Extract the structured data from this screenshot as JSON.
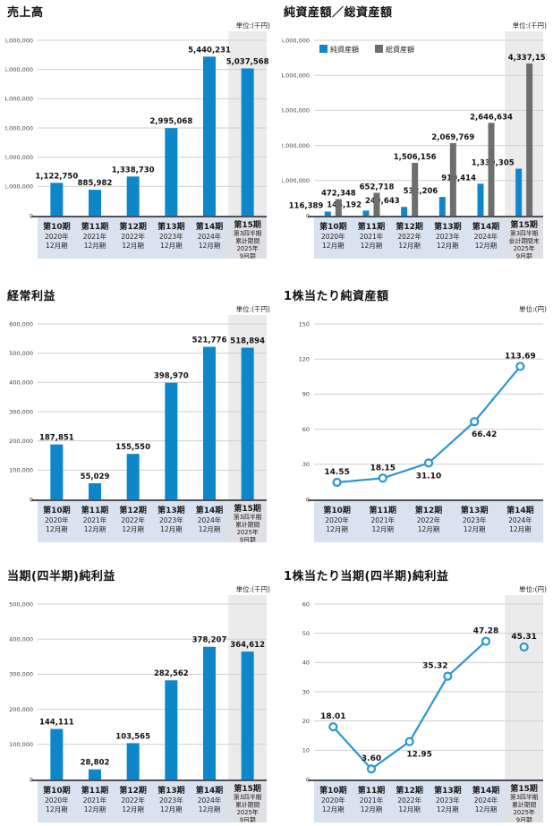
{
  "colors": {
    "bar_blue": "#0d87c9",
    "bar_gray": "#6e6e6e",
    "line_blue": "#2d95d3",
    "marker_fill": "#ffffff",
    "footer_band": "#d9e3f0",
    "footer_band_last": "#dfe0e4",
    "highlight_column": "#ebebeb",
    "gridline": "#cfcfcf",
    "axis_line": "#50505a",
    "tick_text": "#444444",
    "value_label_text": "#111111",
    "category_text": "#222222"
  },
  "chart_data": [
    {
      "type": "bar",
      "title": "売上高",
      "unit": "単位:(千円)",
      "ymax": 6000000,
      "yticks": [
        {
          "label": "6,000,000",
          "value": 6000000
        },
        {
          "label": "5,000,000",
          "value": 5000000
        },
        {
          "label": "4,000,000",
          "value": 4000000
        },
        {
          "label": "3,000,000",
          "value": 3000000
        },
        {
          "label": "2,000,000",
          "value": 2000000
        },
        {
          "label": "1,000,000",
          "value": 1000000
        },
        {
          "label": "0",
          "value": 0
        }
      ],
      "categories": [
        [
          "第10期",
          "2020年",
          "12月期"
        ],
        [
          "第11期",
          "2021年",
          "12月期"
        ],
        [
          "第12期",
          "2022年",
          "12月期"
        ],
        [
          "第13期",
          "2023年",
          "12月期"
        ],
        [
          "第14期",
          "2024年",
          "12月期"
        ],
        [
          "第15期",
          "第3四半期",
          "累計期間",
          "2025年",
          "9月期"
        ]
      ],
      "values": [
        1122750,
        885982,
        1338730,
        2995068,
        5440231,
        5037568
      ],
      "value_labels": [
        "1,122,750",
        "885,982",
        "1,338,730",
        "2,995,068",
        "5,440,231",
        "5,037,568"
      ],
      "highlight_last": true
    },
    {
      "type": "grouped_bar",
      "title": "純資産額／総資産額",
      "unit": "単位:(千円)",
      "ymax": 5000000,
      "yticks": [
        {
          "label": "5,000,000",
          "value": 5000000
        },
        {
          "label": "4,000,000",
          "value": 4000000
        },
        {
          "label": "3,000,000",
          "value": 3000000
        },
        {
          "label": "2,000,000",
          "value": 2000000
        },
        {
          "label": "1,000,000",
          "value": 1000000
        },
        {
          "label": "0",
          "value": 0
        }
      ],
      "categories": [
        [
          "第10期",
          "2020年",
          "12月期"
        ],
        [
          "第11期",
          "2021年",
          "12月期"
        ],
        [
          "第12期",
          "2022年",
          "12月期"
        ],
        [
          "第13期",
          "2023年",
          "12月期"
        ],
        [
          "第14期",
          "2024年",
          "12月期"
        ],
        [
          "第15期",
          "第3四半期",
          "会計期間末",
          "2025年",
          "9月期"
        ]
      ],
      "legend": [
        {
          "label": "純資産額",
          "color_key": "bar_blue"
        },
        {
          "label": "総資産額",
          "color_key": "bar_gray"
        }
      ],
      "series": [
        {
          "name": "純資産額",
          "color_key": "bar_blue",
          "label_style": "left",
          "values": [
            116389,
            145192,
            249643,
            532206,
            910414,
            1339305
          ],
          "value_labels": [
            "116,389",
            "145,192",
            "249,643",
            "532,206",
            "910,414",
            "1,339,305"
          ]
        },
        {
          "name": "総資産額",
          "color_key": "bar_gray",
          "label_style": "center",
          "values": [
            472348,
            652718,
            1506156,
            2069769,
            2646634,
            4337151
          ],
          "value_labels": [
            "472,348",
            "652,718",
            "1,506,156",
            "2,069,769",
            "2,646,634",
            "4,337,151"
          ]
        }
      ],
      "highlight_last": true
    },
    {
      "type": "bar",
      "title": "経常利益",
      "unit": "単位:(千円)",
      "ymax": 600000,
      "yticks": [
        {
          "label": "600,000",
          "value": 600000
        },
        {
          "label": "500,000",
          "value": 500000
        },
        {
          "label": "400,000",
          "value": 400000
        },
        {
          "label": "300,000",
          "value": 300000
        },
        {
          "label": "200,000",
          "value": 200000
        },
        {
          "label": "100,000",
          "value": 100000
        },
        {
          "label": "0",
          "value": 0
        }
      ],
      "categories": [
        [
          "第10期",
          "2020年",
          "12月期"
        ],
        [
          "第11期",
          "2021年",
          "12月期"
        ],
        [
          "第12期",
          "2022年",
          "12月期"
        ],
        [
          "第13期",
          "2023年",
          "12月期"
        ],
        [
          "第14期",
          "2024年",
          "12月期"
        ],
        [
          "第15期",
          "第3四半期",
          "累計期間",
          "2025年",
          "9月期"
        ]
      ],
      "values": [
        187851,
        55029,
        155550,
        398970,
        521776,
        518894
      ],
      "value_labels": [
        "187,851",
        "55,029",
        "155,550",
        "398,970",
        "521,776",
        "518,894"
      ],
      "highlight_last": true
    },
    {
      "type": "line",
      "title": "1株当たり純資産額",
      "unit": "単位:(円)",
      "ymax": 150,
      "yticks": [
        {
          "label": "150",
          "value": 150
        },
        {
          "label": "120",
          "value": 120
        },
        {
          "label": "90",
          "value": 90
        },
        {
          "label": "60",
          "value": 60
        },
        {
          "label": "30",
          "value": 30
        },
        {
          "label": "0",
          "value": 0
        }
      ],
      "categories": [
        [
          "第10期",
          "2020年",
          "12月期"
        ],
        [
          "第11期",
          "2021年",
          "12月期"
        ],
        [
          "第12期",
          "2022年",
          "12月期"
        ],
        [
          "第13期",
          "2023年",
          "12月期"
        ],
        [
          "第14期",
          "2024年",
          "12月期"
        ]
      ],
      "values": [
        14.55,
        18.15,
        31.1,
        66.42,
        113.69
      ],
      "value_labels": [
        "14.55",
        "18.15",
        "31.10",
        "66.42",
        "113.69"
      ],
      "label_pos": [
        "above",
        "above",
        "below",
        "below-right",
        "above"
      ],
      "connect_count": 5,
      "highlight_last": false
    },
    {
      "type": "bar",
      "title": "当期(四半期)純利益",
      "unit": "単位:(千円)",
      "ymax": 500000,
      "yticks": [
        {
          "label": "500,000",
          "value": 500000
        },
        {
          "label": "400,000",
          "value": 400000
        },
        {
          "label": "300,000",
          "value": 300000
        },
        {
          "label": "200,000",
          "value": 200000
        },
        {
          "label": "100,000",
          "value": 100000
        },
        {
          "label": "0",
          "value": 0
        }
      ],
      "categories": [
        [
          "第10期",
          "2020年",
          "12月期"
        ],
        [
          "第11期",
          "2021年",
          "12月期"
        ],
        [
          "第12期",
          "2022年",
          "12月期"
        ],
        [
          "第13期",
          "2023年",
          "12月期"
        ],
        [
          "第14期",
          "2024年",
          "12月期"
        ],
        [
          "第15期",
          "第3四半期",
          "累計期間",
          "2025年",
          "9月期"
        ]
      ],
      "values": [
        144111,
        28802,
        103565,
        282562,
        378207,
        364612
      ],
      "value_labels": [
        "144,111",
        "28,802",
        "103,565",
        "282,562",
        "378,207",
        "364,612"
      ],
      "highlight_last": true
    },
    {
      "type": "line",
      "title": "1株当たり当期(四半期)純利益",
      "unit": "単位:(円)",
      "ymax": 60,
      "yticks": [
        {
          "label": "60",
          "value": 60
        },
        {
          "label": "50",
          "value": 50
        },
        {
          "label": "40",
          "value": 40
        },
        {
          "label": "30",
          "value": 30
        },
        {
          "label": "20",
          "value": 20
        },
        {
          "label": "10",
          "value": 10
        },
        {
          "label": "0",
          "value": 0
        }
      ],
      "categories": [
        [
          "第10期",
          "2020年",
          "12月期"
        ],
        [
          "第11期",
          "2021年",
          "12月期"
        ],
        [
          "第12期",
          "2022年",
          "12月期"
        ],
        [
          "第13期",
          "2023年",
          "12月期"
        ],
        [
          "第14期",
          "2024年",
          "12月期"
        ],
        [
          "第15期",
          "第3四半期",
          "累計期間",
          "2025年",
          "9月期"
        ]
      ],
      "values": [
        18.01,
        3.6,
        12.95,
        35.32,
        47.28,
        45.31
      ],
      "value_labels": [
        "18.01",
        "3.60",
        "12.95",
        "35.32",
        "47.28",
        "45.31"
      ],
      "label_pos": [
        "above",
        "above",
        "below-right",
        "above-left",
        "above",
        "above"
      ],
      "connect_count": 5,
      "highlight_last": true
    }
  ]
}
